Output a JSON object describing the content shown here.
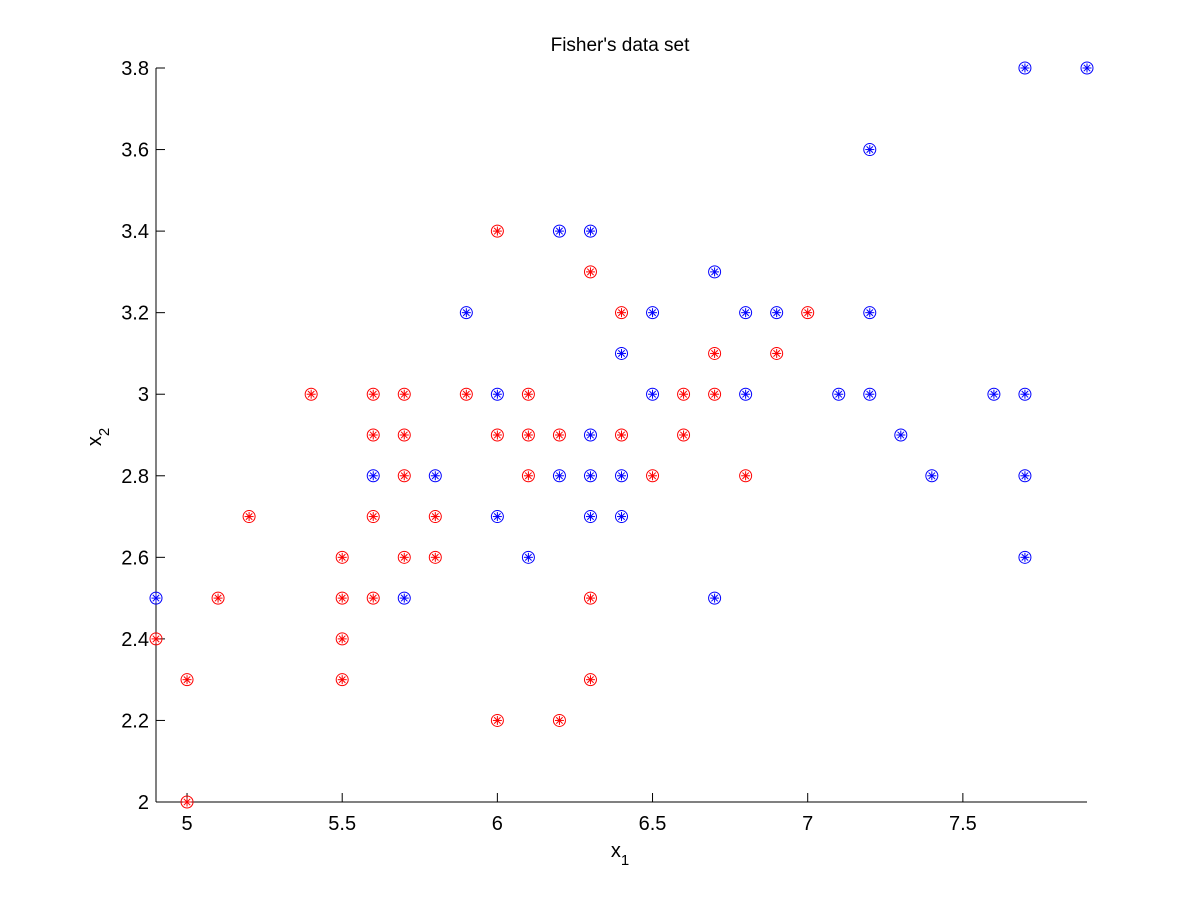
{
  "chart_data": {
    "type": "scatter",
    "title": "Fisher's data set",
    "xlabel": {
      "main": "x",
      "sub": "1"
    },
    "ylabel": {
      "main": "x",
      "sub": "2"
    },
    "xlim": [
      4.9,
      7.9
    ],
    "ylim": [
      2.0,
      3.8
    ],
    "xticks": [
      5,
      5.5,
      6,
      6.5,
      7,
      7.5
    ],
    "xtick_labels": [
      "5",
      "5.5",
      "6",
      "6.5",
      "7",
      "7.5"
    ],
    "yticks": [
      2,
      2.2,
      2.4,
      2.6,
      2.8,
      3,
      3.2,
      3.4,
      3.6,
      3.8
    ],
    "ytick_labels": [
      "2",
      "2.2",
      "2.4",
      "2.6",
      "2.8",
      "3",
      "3.2",
      "3.4",
      "3.6",
      "3.8"
    ],
    "grid": false,
    "marker": "circle-with-asterisk",
    "series": [
      {
        "color": "#ff0000",
        "points": [
          [
            5.0,
            2.0
          ],
          [
            5.0,
            2.3
          ],
          [
            4.9,
            2.4
          ],
          [
            5.1,
            2.5
          ],
          [
            5.2,
            2.7
          ],
          [
            5.4,
            3.0
          ],
          [
            5.5,
            2.3
          ],
          [
            5.5,
            2.4
          ],
          [
            5.5,
            2.5
          ],
          [
            5.5,
            2.6
          ],
          [
            5.6,
            2.5
          ],
          [
            5.6,
            2.7
          ],
          [
            5.6,
            2.9
          ],
          [
            5.6,
            3.0
          ],
          [
            5.7,
            2.6
          ],
          [
            5.7,
            2.8
          ],
          [
            5.7,
            2.9
          ],
          [
            5.7,
            3.0
          ],
          [
            5.8,
            2.6
          ],
          [
            5.8,
            2.7
          ],
          [
            5.9,
            3.0
          ],
          [
            6.0,
            2.2
          ],
          [
            6.0,
            2.9
          ],
          [
            6.0,
            3.4
          ],
          [
            6.1,
            2.8
          ],
          [
            6.1,
            2.9
          ],
          [
            6.1,
            3.0
          ],
          [
            6.2,
            2.2
          ],
          [
            6.2,
            2.9
          ],
          [
            6.3,
            2.3
          ],
          [
            6.3,
            2.5
          ],
          [
            6.3,
            3.3
          ],
          [
            6.4,
            2.9
          ],
          [
            6.4,
            3.2
          ],
          [
            6.5,
            2.8
          ],
          [
            6.6,
            2.9
          ],
          [
            6.6,
            3.0
          ],
          [
            6.7,
            3.0
          ],
          [
            6.7,
            3.1
          ],
          [
            6.8,
            2.8
          ],
          [
            6.9,
            3.1
          ],
          [
            7.0,
            3.2
          ]
        ]
      },
      {
        "color": "#0000ff",
        "points": [
          [
            4.9,
            2.5
          ],
          [
            5.6,
            2.8
          ],
          [
            5.7,
            2.5
          ],
          [
            5.8,
            2.8
          ],
          [
            5.9,
            3.2
          ],
          [
            6.0,
            2.7
          ],
          [
            6.0,
            3.0
          ],
          [
            6.1,
            2.6
          ],
          [
            6.2,
            2.8
          ],
          [
            6.2,
            3.4
          ],
          [
            6.3,
            2.7
          ],
          [
            6.3,
            2.8
          ],
          [
            6.3,
            2.9
          ],
          [
            6.3,
            3.4
          ],
          [
            6.4,
            2.7
          ],
          [
            6.4,
            2.8
          ],
          [
            6.4,
            3.1
          ],
          [
            6.5,
            3.0
          ],
          [
            6.5,
            3.2
          ],
          [
            6.7,
            2.5
          ],
          [
            6.7,
            3.3
          ],
          [
            6.8,
            3.0
          ],
          [
            6.8,
            3.2
          ],
          [
            6.9,
            3.2
          ],
          [
            7.1,
            3.0
          ],
          [
            7.2,
            3.0
          ],
          [
            7.2,
            3.2
          ],
          [
            7.2,
            3.6
          ],
          [
            7.3,
            2.9
          ],
          [
            7.4,
            2.8
          ],
          [
            7.6,
            3.0
          ],
          [
            7.7,
            2.6
          ],
          [
            7.7,
            2.8
          ],
          [
            7.7,
            3.0
          ],
          [
            7.7,
            3.8
          ],
          [
            7.9,
            3.8
          ]
        ]
      }
    ]
  }
}
